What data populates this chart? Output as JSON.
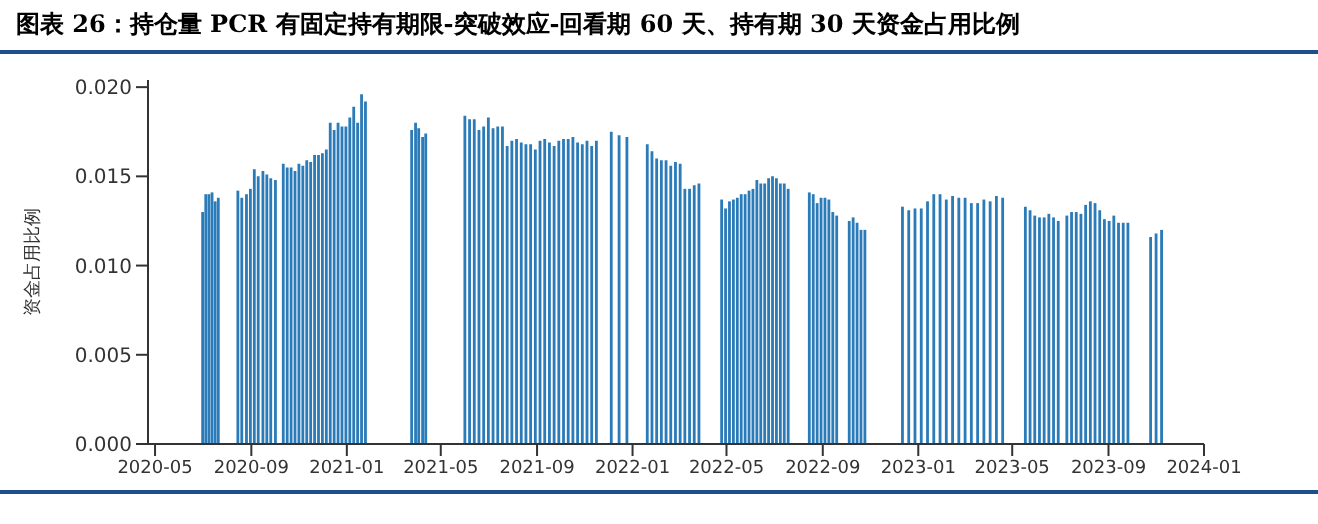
{
  "chart_data": {
    "type": "bar",
    "title": "图表 26：持仓量 PCR 有固定持有期限-突破效应-回看期 60 天、持有期 30 天资金占用比例",
    "ylabel": "资金占用比例",
    "x": [
      "2020-07-01",
      "2020-07-05",
      "2020-07-09",
      "2020-07-13",
      "2020-07-17",
      "2020-07-21",
      "2020-08-15",
      "2020-08-20",
      "2020-08-26",
      "2020-08-31",
      "2020-09-05",
      "2020-09-10",
      "2020-09-16",
      "2020-09-21",
      "2020-09-26",
      "2020-10-02",
      "2020-10-12",
      "2020-10-17",
      "2020-10-22",
      "2020-10-27",
      "2020-11-01",
      "2020-11-06",
      "2020-11-11",
      "2020-11-16",
      "2020-11-21",
      "2020-11-26",
      "2020-12-01",
      "2020-12-06",
      "2020-12-11",
      "2020-12-16",
      "2020-12-21",
      "2020-12-26",
      "2020-12-31",
      "2021-01-05",
      "2021-01-10",
      "2021-01-15",
      "2021-01-20",
      "2021-01-25",
      "2021-03-25",
      "2021-03-30",
      "2021-04-03",
      "2021-04-08",
      "2021-04-12",
      "2021-06-01",
      "2021-06-07",
      "2021-06-13",
      "2021-06-19",
      "2021-06-25",
      "2021-07-01",
      "2021-07-07",
      "2021-07-13",
      "2021-07-19",
      "2021-07-25",
      "2021-07-31",
      "2021-08-06",
      "2021-08-12",
      "2021-08-18",
      "2021-08-24",
      "2021-08-30",
      "2021-09-05",
      "2021-09-11",
      "2021-09-17",
      "2021-09-23",
      "2021-09-29",
      "2021-10-05",
      "2021-10-11",
      "2021-10-17",
      "2021-10-23",
      "2021-10-29",
      "2021-11-04",
      "2021-11-10",
      "2021-11-16",
      "2021-12-05",
      "2021-12-15",
      "2021-12-25",
      "2022-01-20",
      "2022-01-26",
      "2022-02-01",
      "2022-02-07",
      "2022-02-13",
      "2022-02-19",
      "2022-02-25",
      "2022-03-03",
      "2022-03-09",
      "2022-03-15",
      "2022-03-21",
      "2022-03-27",
      "2022-04-25",
      "2022-04-30",
      "2022-05-05",
      "2022-05-10",
      "2022-05-15",
      "2022-05-20",
      "2022-05-25",
      "2022-05-30",
      "2022-06-04",
      "2022-06-09",
      "2022-06-14",
      "2022-06-19",
      "2022-06-24",
      "2022-06-29",
      "2022-07-04",
      "2022-07-09",
      "2022-07-14",
      "2022-07-19",
      "2022-08-15",
      "2022-08-20",
      "2022-08-25",
      "2022-08-30",
      "2022-09-04",
      "2022-09-09",
      "2022-09-14",
      "2022-09-19",
      "2022-10-05",
      "2022-10-10",
      "2022-10-15",
      "2022-10-20",
      "2022-10-25",
      "2022-12-12",
      "2022-12-20",
      "2022-12-28",
      "2023-01-05",
      "2023-01-13",
      "2023-01-21",
      "2023-01-29",
      "2023-02-06",
      "2023-02-14",
      "2023-02-22",
      "2023-03-02",
      "2023-03-10",
      "2023-03-18",
      "2023-03-26",
      "2023-04-03",
      "2023-04-11",
      "2023-04-19",
      "2023-05-18",
      "2023-05-24",
      "2023-05-30",
      "2023-06-05",
      "2023-06-11",
      "2023-06-17",
      "2023-06-23",
      "2023-06-29",
      "2023-07-10",
      "2023-07-16",
      "2023-07-22",
      "2023-07-28",
      "2023-08-03",
      "2023-08-09",
      "2023-08-15",
      "2023-08-21",
      "2023-08-27",
      "2023-09-02",
      "2023-09-08",
      "2023-09-14",
      "2023-09-20",
      "2023-09-26",
      "2023-10-25",
      "2023-11-01",
      "2023-11-08"
    ],
    "series": [
      {
        "color": "#2b7bb9",
        "values": [
          0.013,
          0.014,
          0.014,
          0.0141,
          0.0136,
          0.0138,
          0.0142,
          0.0138,
          0.014,
          0.0143,
          0.0154,
          0.015,
          0.0153,
          0.0151,
          0.0149,
          0.0148,
          0.0157,
          0.0155,
          0.0155,
          0.0153,
          0.0157,
          0.0156,
          0.0159,
          0.0158,
          0.0162,
          0.0162,
          0.0163,
          0.0165,
          0.018,
          0.0176,
          0.018,
          0.0178,
          0.0178,
          0.0183,
          0.0189,
          0.018,
          0.0196,
          0.0192,
          0.0176,
          0.018,
          0.0177,
          0.0172,
          0.0174,
          0.0184,
          0.0182,
          0.0182,
          0.0176,
          0.0178,
          0.0183,
          0.0177,
          0.0178,
          0.0178,
          0.0167,
          0.017,
          0.0171,
          0.0169,
          0.0168,
          0.0168,
          0.0165,
          0.017,
          0.0171,
          0.0169,
          0.0167,
          0.017,
          0.0171,
          0.0171,
          0.0172,
          0.0169,
          0.0168,
          0.017,
          0.0167,
          0.017,
          0.0175,
          0.0173,
          0.0172,
          0.0168,
          0.0164,
          0.016,
          0.0159,
          0.0159,
          0.0156,
          0.0158,
          0.0157,
          0.0143,
          0.0143,
          0.0145,
          0.0146,
          0.0137,
          0.0132,
          0.0136,
          0.0137,
          0.0138,
          0.014,
          0.014,
          0.0142,
          0.0143,
          0.0148,
          0.0146,
          0.0146,
          0.0149,
          0.015,
          0.0149,
          0.0146,
          0.0146,
          0.0143,
          0.0141,
          0.014,
          0.0135,
          0.0138,
          0.0138,
          0.0137,
          0.013,
          0.0128,
          0.0125,
          0.0127,
          0.0124,
          0.012,
          0.012,
          0.0133,
          0.0131,
          0.0132,
          0.0132,
          0.0136,
          0.014,
          0.014,
          0.0137,
          0.0139,
          0.0138,
          0.0138,
          0.0135,
          0.0135,
          0.0137,
          0.0136,
          0.0139,
          0.0138,
          0.0133,
          0.0131,
          0.0128,
          0.0127,
          0.0127,
          0.0129,
          0.0127,
          0.0125,
          0.0128,
          0.013,
          0.013,
          0.0129,
          0.0134,
          0.0136,
          0.0135,
          0.0131,
          0.0126,
          0.0125,
          0.0128,
          0.0124,
          0.0124,
          0.0124,
          0.0116,
          0.0118,
          0.012
        ]
      }
    ],
    "xlim": [
      "2020-04-22",
      "2024-01-01"
    ],
    "xticks": [
      "2020-05",
      "2020-09",
      "2021-01",
      "2021-05",
      "2021-09",
      "2022-01",
      "2022-05",
      "2022-09",
      "2023-01",
      "2023-05",
      "2023-09",
      "2024-01"
    ],
    "ylim": [
      0,
      0.0204
    ],
    "yticks": [
      {
        "value": 0,
        "label": "0.000"
      },
      {
        "value": 0.005,
        "label": "0.005"
      },
      {
        "value": 0.01,
        "label": "0.010"
      },
      {
        "value": 0.015,
        "label": "0.015"
      },
      {
        "value": 0.02,
        "label": "0.020"
      }
    ],
    "grid": false,
    "legend": false
  }
}
